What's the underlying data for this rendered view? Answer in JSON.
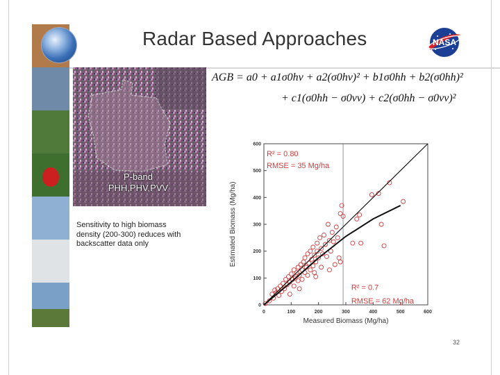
{
  "slide": {
    "title": "Radar Based Approaches",
    "page_number": "32"
  },
  "radar_image": {
    "caption_line1": "P-band",
    "caption_line2": "PHH,PHV,PVV"
  },
  "note": {
    "text": "Sensitivity to high biomass density (200-300) reduces with backscatter data only"
  },
  "equation": {
    "line1": "AGB = a0 + a1σ0hv + a2(σ0hv)² + b1σ0hh + b2(σ0hh)²",
    "line2": "+ c1(σ0hh − σ0vv) + c2(σ0hh − σ0vv)²"
  },
  "chart_data": {
    "type": "scatter",
    "title": "",
    "xlabel": "Measured Biomass (Mg/ha)",
    "ylabel": "Estimated Biomass (Mg/ha)",
    "xlim": [
      0,
      600
    ],
    "ylim": [
      0,
      600
    ],
    "xticks": [
      0,
      100,
      200,
      300,
      400,
      500,
      600
    ],
    "yticks": [
      0,
      100,
      200,
      300,
      400,
      500,
      600
    ],
    "grid": false,
    "marker_color": "#d23a3a",
    "line_color": "#111111",
    "annotations": [
      {
        "text": "R² = 0.80",
        "color": "#d23a3a"
      },
      {
        "text": "RMSE = 35 Mg/ha",
        "color": "#d23a3a"
      },
      {
        "text": "R² = 0.7",
        "color": "#d23a3a"
      },
      {
        "text": "RMSE = 62 Mg/ha",
        "color": "#d23a3a"
      }
    ],
    "reference_line": {
      "x": 290
    },
    "series": [
      {
        "type": "scatter",
        "points": [
          [
            5,
            5
          ],
          [
            20,
            15
          ],
          [
            30,
            40
          ],
          [
            35,
            25
          ],
          [
            40,
            55
          ],
          [
            45,
            45
          ],
          [
            50,
            60
          ],
          [
            55,
            35
          ],
          [
            60,
            70
          ],
          [
            65,
            50
          ],
          [
            70,
            80
          ],
          [
            75,
            60
          ],
          [
            80,
            95
          ],
          [
            85,
            75
          ],
          [
            90,
            105
          ],
          [
            95,
            40
          ],
          [
            95,
            85
          ],
          [
            100,
            115
          ],
          [
            105,
            95
          ],
          [
            110,
            130
          ],
          [
            110,
            70
          ],
          [
            115,
            100
          ],
          [
            120,
            120
          ],
          [
            125,
            140
          ],
          [
            125,
            90
          ],
          [
            130,
            110
          ],
          [
            135,
            150
          ],
          [
            140,
            130
          ],
          [
            140,
            95
          ],
          [
            145,
            160
          ],
          [
            150,
            120
          ],
          [
            150,
            175
          ],
          [
            155,
            140
          ],
          [
            160,
            190
          ],
          [
            160,
            110
          ],
          [
            165,
            155
          ],
          [
            170,
            200
          ],
          [
            170,
            130
          ],
          [
            175,
            170
          ],
          [
            180,
            215
          ],
          [
            180,
            145
          ],
          [
            185,
            185
          ],
          [
            185,
            120
          ],
          [
            190,
            160
          ],
          [
            195,
            230
          ],
          [
            195,
            200
          ],
          [
            200,
            175
          ],
          [
            205,
            250
          ],
          [
            210,
            140
          ],
          [
            210,
            210
          ],
          [
            215,
            190
          ],
          [
            220,
            260
          ],
          [
            225,
            225
          ],
          [
            230,
            180
          ],
          [
            235,
            300
          ],
          [
            240,
            240
          ],
          [
            245,
            200
          ],
          [
            250,
            270
          ],
          [
            255,
            235
          ],
          [
            260,
            150
          ],
          [
            265,
            290
          ],
          [
            270,
            250
          ],
          [
            275,
            175
          ],
          [
            280,
            340
          ],
          [
            285,
            370
          ],
          [
            290,
            330
          ],
          [
            325,
            230
          ],
          [
            340,
            320
          ],
          [
            350,
            335
          ],
          [
            355,
            230
          ],
          [
            395,
            410
          ],
          [
            420,
            415
          ],
          [
            430,
            300
          ],
          [
            440,
            220
          ],
          [
            460,
            455
          ],
          [
            510,
            385
          ],
          [
            280,
            160
          ],
          [
            240,
            130
          ],
          [
            190,
            105
          ],
          [
            130,
            60
          ]
        ]
      },
      {
        "type": "line",
        "name": "",
        "points": [
          [
            0,
            0
          ],
          [
            600,
            600
          ]
        ]
      },
      {
        "type": "line",
        "name": "",
        "points": [
          [
            0,
            0
          ],
          [
            100,
            85
          ],
          [
            200,
            175
          ],
          [
            300,
            255
          ],
          [
            400,
            320
          ],
          [
            500,
            370
          ]
        ]
      }
    ]
  }
}
